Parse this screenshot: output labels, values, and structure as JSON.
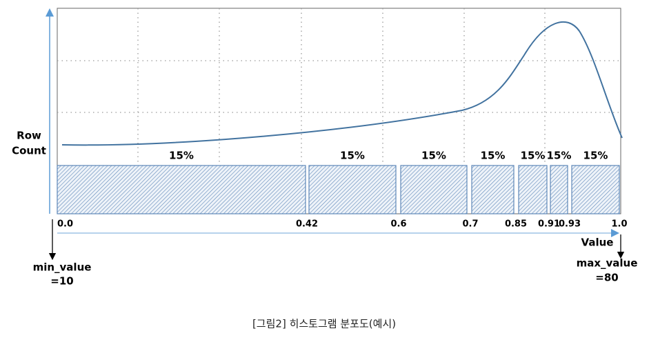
{
  "y_axis_label": [
    "Row",
    "Count"
  ],
  "x_axis_label": "Value",
  "ticks": [
    "0.0",
    "0.42",
    "0.6",
    "0.7",
    "0.85",
    "0.91",
    "0.93",
    "1.0"
  ],
  "buckets": [
    "15%",
    "15%",
    "15%",
    "15%",
    "15%",
    "15%",
    "15%"
  ],
  "min_label": [
    "min_value",
    "=10"
  ],
  "max_label": [
    "max_value",
    "=80"
  ],
  "caption": "[그림2] 히스토그램 분포도(예시)"
}
